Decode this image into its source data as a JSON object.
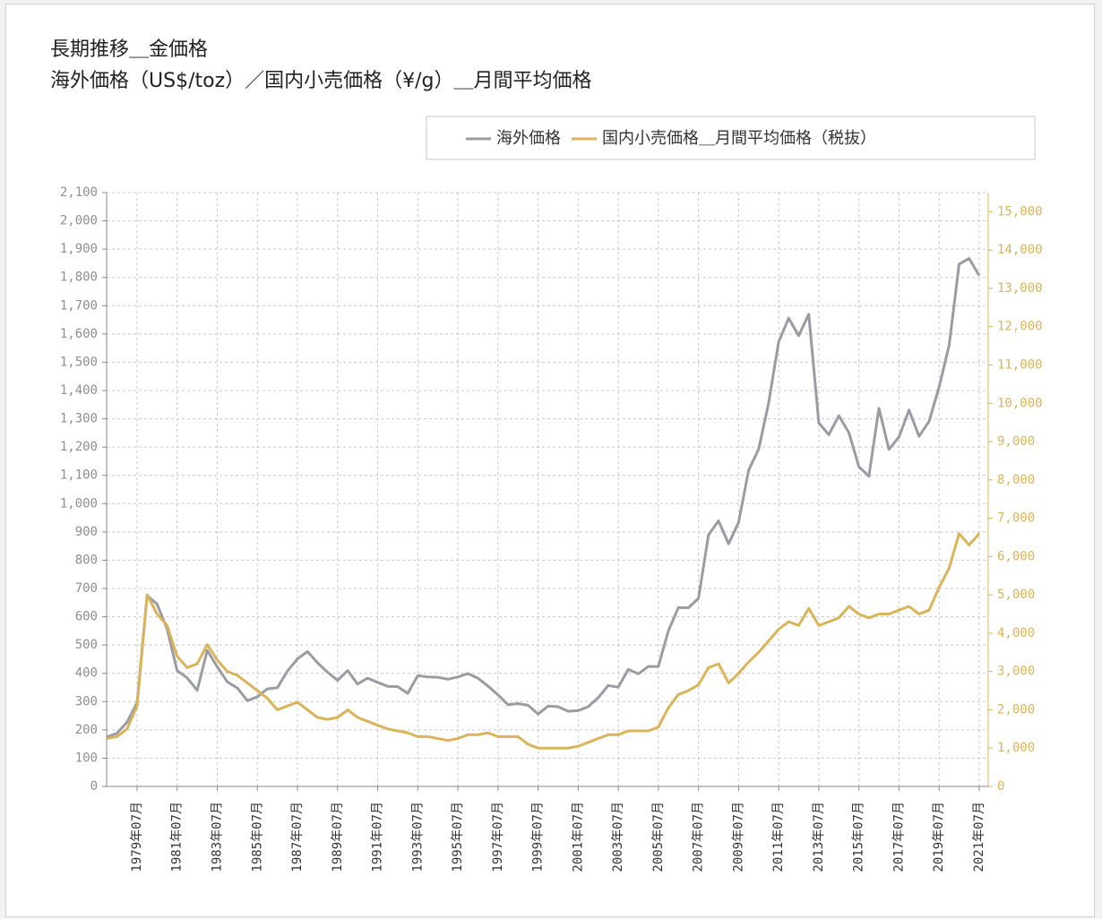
{
  "chart_data": {
    "type": "line",
    "title": "長期推移＿金価格",
    "subtitle": "海外価格（US$/toz）／国内小売価格（¥/g）＿月間平均価格",
    "legend": "top-right",
    "grid": true,
    "categories": [
      null,
      null,
      null,
      "1979年07月",
      null,
      null,
      null,
      "1981年07月",
      null,
      null,
      null,
      "1983年07月",
      null,
      null,
      null,
      "1985年07月",
      null,
      null,
      null,
      "1987年07月",
      null,
      null,
      null,
      "1989年07月",
      null,
      null,
      null,
      "1991年07月",
      null,
      null,
      null,
      "1993年07月",
      null,
      null,
      null,
      "1995年07月",
      null,
      null,
      null,
      "1997年07月",
      null,
      null,
      null,
      "1999年07月",
      null,
      null,
      null,
      "2001年07月",
      null,
      null,
      null,
      "2003年07月",
      null,
      null,
      null,
      "2005年07月",
      null,
      null,
      null,
      "2007年07月",
      null,
      null,
      null,
      "2009年07月",
      null,
      null,
      null,
      "2011年07月",
      null,
      null,
      null,
      "2013年07月",
      null,
      null,
      null,
      "2015年07月",
      null,
      null,
      null,
      "2017年07月",
      null,
      null,
      null,
      "2019年07月",
      null,
      null,
      null,
      "2021年07月"
    ],
    "series": [
      {
        "name": "海外価格",
        "color": "#9a9ba3",
        "axis": "y",
        "values": [
          175,
          188,
          227,
          296,
          675,
          645,
          557,
          410,
          384,
          340,
          481,
          423,
          370,
          348,
          303,
          317,
          345,
          349,
          408,
          451,
          477,
          437,
          404,
          375,
          410,
          362,
          383,
          368,
          354,
          353,
          329,
          392,
          387,
          386,
          379,
          387,
          399,
          383,
          355,
          324,
          289,
          293,
          287,
          256,
          284,
          282,
          266,
          268,
          282,
          314,
          357,
          351,
          414,
          398,
          424,
          424,
          550,
          633,
          632,
          665,
          889,
          939,
          858,
          934,
          1118,
          1193,
          1356,
          1572,
          1656,
          1594,
          1670,
          1286,
          1244,
          1311,
          1251,
          1131,
          1097,
          1337,
          1192,
          1236,
          1331,
          1238,
          1291,
          1413,
          1560,
          1847,
          1867,
          1807
        ]
      },
      {
        "name": "国内小売価格＿月間平均価格（税抜）",
        "color": "#d9b45a",
        "axis": "y2",
        "values": [
          1250,
          1300,
          1500,
          2100,
          5000,
          4500,
          4200,
          3400,
          3100,
          3200,
          3700,
          3300,
          3000,
          2900,
          2700,
          2500,
          2300,
          2000,
          2100,
          2200,
          2000,
          1800,
          1750,
          1800,
          2000,
          1800,
          1700,
          1600,
          1500,
          1450,
          1400,
          1300,
          1300,
          1250,
          1200,
          1250,
          1350,
          1350,
          1400,
          1300,
          1300,
          1300,
          1100,
          1000,
          1000,
          1000,
          1000,
          1050,
          1150,
          1250,
          1350,
          1350,
          1450,
          1450,
          1450,
          1550,
          2050,
          2400,
          2500,
          2650,
          3100,
          3200,
          2700,
          2950,
          3250,
          3500,
          3800,
          4100,
          4300,
          4200,
          4650,
          4200,
          4300,
          4400,
          4700,
          4500,
          4400,
          4500,
          4500,
          4600,
          4700,
          4500,
          4600,
          5200,
          5700,
          6600,
          6300,
          6600
        ]
      }
    ],
    "ylim": [
      0,
      2100
    ],
    "yticks": [
      0,
      100,
      200,
      300,
      400,
      500,
      600,
      700,
      800,
      900,
      {
        "value": 1000,
        "label": "1,000"
      },
      {
        "value": 1100,
        "label": "1,100"
      },
      {
        "value": 1200,
        "label": "1,200"
      },
      {
        "value": 1300,
        "label": "1,300"
      },
      {
        "value": 1400,
        "label": "1,400"
      },
      {
        "value": 1500,
        "label": "1,500"
      },
      {
        "value": 1600,
        "label": "1,600"
      },
      {
        "value": 1700,
        "label": "1,700"
      },
      {
        "value": 1800,
        "label": "1,800"
      },
      {
        "value": 1900,
        "label": "1,900"
      },
      {
        "value": 2000,
        "label": "2,000"
      },
      {
        "value": 2100,
        "label": "2,100"
      }
    ],
    "y2lim": [
      0,
      15500
    ],
    "y2ticks": [
      0,
      {
        "value": 1000,
        "label": "1,000"
      },
      {
        "value": 2000,
        "label": "2,000"
      },
      {
        "value": 3000,
        "label": "3,000"
      },
      {
        "value": 4000,
        "label": "4,000"
      },
      {
        "value": 5000,
        "label": "5,000"
      },
      {
        "value": 6000,
        "label": "6,000"
      },
      {
        "value": 7000,
        "label": "7,000"
      },
      {
        "value": 8000,
        "label": "8,000"
      },
      {
        "value": 9000,
        "label": "9,000"
      },
      {
        "value": 10000,
        "label": "10,000"
      },
      {
        "value": 11000,
        "label": "11,000"
      },
      {
        "value": 12000,
        "label": "12,000"
      },
      {
        "value": 13000,
        "label": "13,000"
      },
      {
        "value": 14000,
        "label": "14,000"
      },
      {
        "value": 15000,
        "label": "15,000"
      }
    ]
  }
}
